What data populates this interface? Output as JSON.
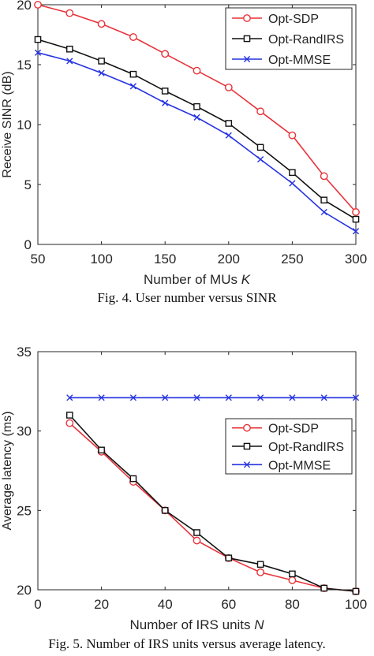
{
  "chart_data": [
    {
      "type": "line",
      "xlabel": "Number of MUs K",
      "ylabel": "Receive SINR (dB)",
      "xlim": [
        50,
        300
      ],
      "ylim": [
        0,
        20
      ],
      "xticks": [
        50,
        100,
        150,
        200,
        250,
        300
      ],
      "yticks": [
        0,
        5,
        10,
        15,
        20
      ],
      "grid": false,
      "legend": "top-right",
      "caption": "Fig. 4.   User number versus SINR",
      "x": [
        50,
        75,
        100,
        125,
        150,
        175,
        200,
        225,
        250,
        275,
        300
      ],
      "series": [
        {
          "name": "Opt-SDP",
          "color": "#e8333a",
          "marker": "circle",
          "values": [
            20.0,
            19.3,
            18.4,
            17.3,
            15.9,
            14.5,
            13.1,
            11.1,
            9.1,
            5.7,
            2.7
          ]
        },
        {
          "name": "Opt-RandIRS",
          "color": "#111111",
          "marker": "square",
          "values": [
            17.1,
            16.3,
            15.3,
            14.2,
            12.8,
            11.5,
            10.1,
            8.1,
            6.0,
            3.7,
            2.1
          ]
        },
        {
          "name": "Opt-MMSE",
          "color": "#2634e0",
          "marker": "x",
          "values": [
            16.0,
            15.3,
            14.3,
            13.2,
            11.8,
            10.6,
            9.1,
            7.1,
            5.1,
            2.7,
            1.1
          ]
        }
      ]
    },
    {
      "type": "line",
      "xlabel": "Number of IRS units N",
      "ylabel": "Average latency (ms)",
      "xlim": [
        0,
        100
      ],
      "ylim": [
        20,
        35
      ],
      "xticks": [
        0,
        20,
        40,
        60,
        80,
        100
      ],
      "yticks": [
        20,
        25,
        30,
        35
      ],
      "grid": false,
      "legend": "center-right",
      "caption": "Fig. 5.   Number of IRS units versus average latency.",
      "x": [
        10,
        20,
        30,
        40,
        50,
        60,
        70,
        80,
        90,
        100
      ],
      "series": [
        {
          "name": "Opt-SDP",
          "color": "#e8333a",
          "marker": "circle",
          "values": [
            30.5,
            28.7,
            26.8,
            25.0,
            23.1,
            22.0,
            21.1,
            20.6,
            20.1,
            19.9
          ]
        },
        {
          "name": "Opt-RandIRS",
          "color": "#111111",
          "marker": "square",
          "values": [
            31.0,
            28.8,
            27.0,
            25.0,
            23.6,
            22.0,
            21.6,
            21.0,
            20.1,
            19.9
          ]
        },
        {
          "name": "Opt-MMSE",
          "color": "#2634e0",
          "marker": "x",
          "values": [
            32.1,
            32.1,
            32.1,
            32.1,
            32.1,
            32.1,
            32.1,
            32.1,
            32.1,
            32.1
          ]
        }
      ]
    }
  ]
}
